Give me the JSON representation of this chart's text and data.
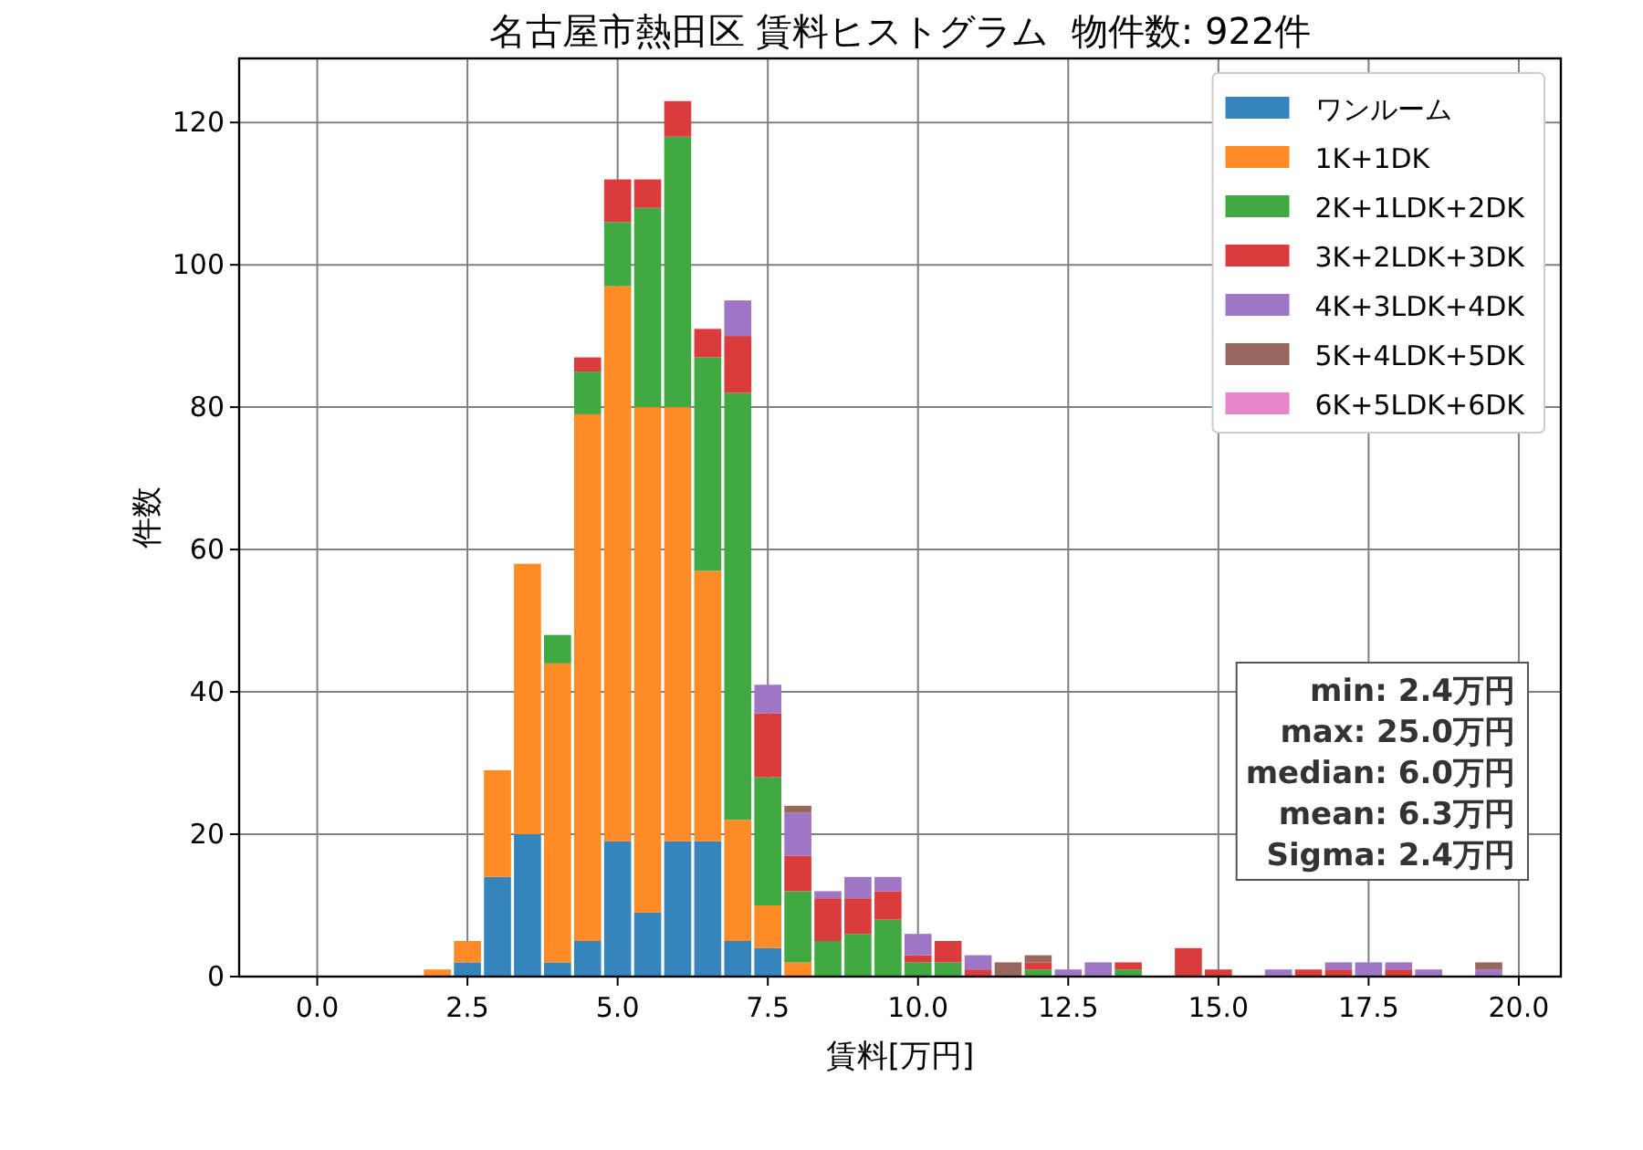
{
  "chart_data": {
    "type": "bar",
    "stacked": true,
    "title": "名古屋市熱田区 賃料ヒストグラム  物件数: 922件",
    "xlabel": "賃料[万円]",
    "ylabel": "件数",
    "x": [
      2,
      2.5,
      3,
      3.5,
      4,
      4.5,
      5,
      5.5,
      6,
      6.5,
      7,
      7.5,
      8,
      8.5,
      9,
      9.5,
      10,
      10.5,
      11,
      11.5,
      12,
      12.5,
      13,
      13.5,
      14,
      14.5,
      15,
      15.5,
      16,
      16.5,
      17,
      17.5,
      18,
      18.5,
      19,
      19.5
    ],
    "series": [
      {
        "name": "ワンルーム",
        "color": "#3585bc",
        "values": [
          0,
          2,
          14,
          20,
          2,
          5,
          19,
          9,
          19,
          19,
          5,
          4,
          0,
          0,
          0,
          0,
          0,
          0,
          0,
          0,
          0,
          0,
          0,
          0,
          0,
          0,
          0,
          0,
          0,
          0,
          0,
          0,
          0,
          0,
          0,
          0
        ]
      },
      {
        "name": "1K+1DK",
        "color": "#ff8b26",
        "values": [
          1,
          3,
          15,
          38,
          42,
          74,
          78,
          71,
          61,
          38,
          17,
          6,
          2,
          0,
          0,
          0,
          0,
          0,
          0,
          0,
          0,
          0,
          0,
          0,
          0,
          0,
          0,
          0,
          0,
          0,
          0,
          0,
          0,
          0,
          0,
          0
        ]
      },
      {
        "name": "2K+1LDK+2DK",
        "color": "#41a941",
        "values": [
          0,
          0,
          0,
          0,
          4,
          6,
          9,
          28,
          38,
          30,
          60,
          18,
          10,
          5,
          6,
          8,
          2,
          2,
          0,
          0,
          1,
          0,
          0,
          1,
          0,
          0,
          0,
          0,
          0,
          0,
          0,
          0,
          0,
          0,
          0,
          0
        ]
      },
      {
        "name": "3K+2LDK+3DK",
        "color": "#da3c3d",
        "values": [
          0,
          0,
          0,
          0,
          0,
          2,
          6,
          4,
          5,
          4,
          8,
          9,
          5,
          6,
          5,
          4,
          1,
          3,
          1,
          0,
          1,
          0,
          0,
          1,
          0,
          4,
          1,
          0,
          0,
          1,
          1,
          0,
          1,
          0,
          0,
          0
        ]
      },
      {
        "name": "4K+3LDK+4DK",
        "color": "#9f76c4",
        "values": [
          0,
          0,
          0,
          0,
          0,
          0,
          0,
          0,
          0,
          0,
          5,
          4,
          6,
          1,
          3,
          2,
          3,
          0,
          2,
          0,
          0,
          1,
          2,
          0,
          0,
          0,
          0,
          0,
          1,
          0,
          1,
          2,
          1,
          1,
          0,
          1
        ]
      },
      {
        "name": "5K+4LDK+5DK",
        "color": "#98675d",
        "values": [
          0,
          0,
          0,
          0,
          0,
          0,
          0,
          0,
          0,
          0,
          0,
          0,
          1,
          0,
          0,
          0,
          0,
          0,
          0,
          2,
          1,
          0,
          0,
          0,
          0,
          0,
          0,
          0,
          0,
          0,
          0,
          0,
          0,
          0,
          0,
          1
        ]
      },
      {
        "name": "6K+5LDK+6DK",
        "color": "#e685c8",
        "values": [
          0,
          0,
          0,
          0,
          0,
          0,
          0,
          0,
          0,
          0,
          0,
          0,
          0,
          0,
          0,
          0,
          0,
          0,
          0,
          0,
          0,
          0,
          0,
          0,
          0,
          0,
          0,
          0,
          0,
          0,
          0,
          0,
          0,
          0,
          0,
          0
        ]
      }
    ],
    "xlim": [
      -1.3,
      20.7
    ],
    "ylim": [
      0,
      129
    ],
    "xticks": [
      {
        "value": 0,
        "label": "0.0"
      },
      {
        "value": 2.5,
        "label": "2.5"
      },
      {
        "value": 5,
        "label": "5.0"
      },
      {
        "value": 7.5,
        "label": "7.5"
      },
      {
        "value": 10,
        "label": "10.0"
      },
      {
        "value": 12.5,
        "label": "12.5"
      },
      {
        "value": 15,
        "label": "15.0"
      },
      {
        "value": 17.5,
        "label": "17.5"
      },
      {
        "value": 20,
        "label": "20.0"
      }
    ],
    "yticks": [
      0,
      20,
      40,
      60,
      80,
      100,
      120
    ],
    "grid": true,
    "legend": "top right",
    "annotations": [
      "min: 2.4万円",
      "max: 25.0万円",
      "median: 6.0万円",
      "mean: 6.3万円",
      "Sigma: 2.4万円"
    ]
  }
}
